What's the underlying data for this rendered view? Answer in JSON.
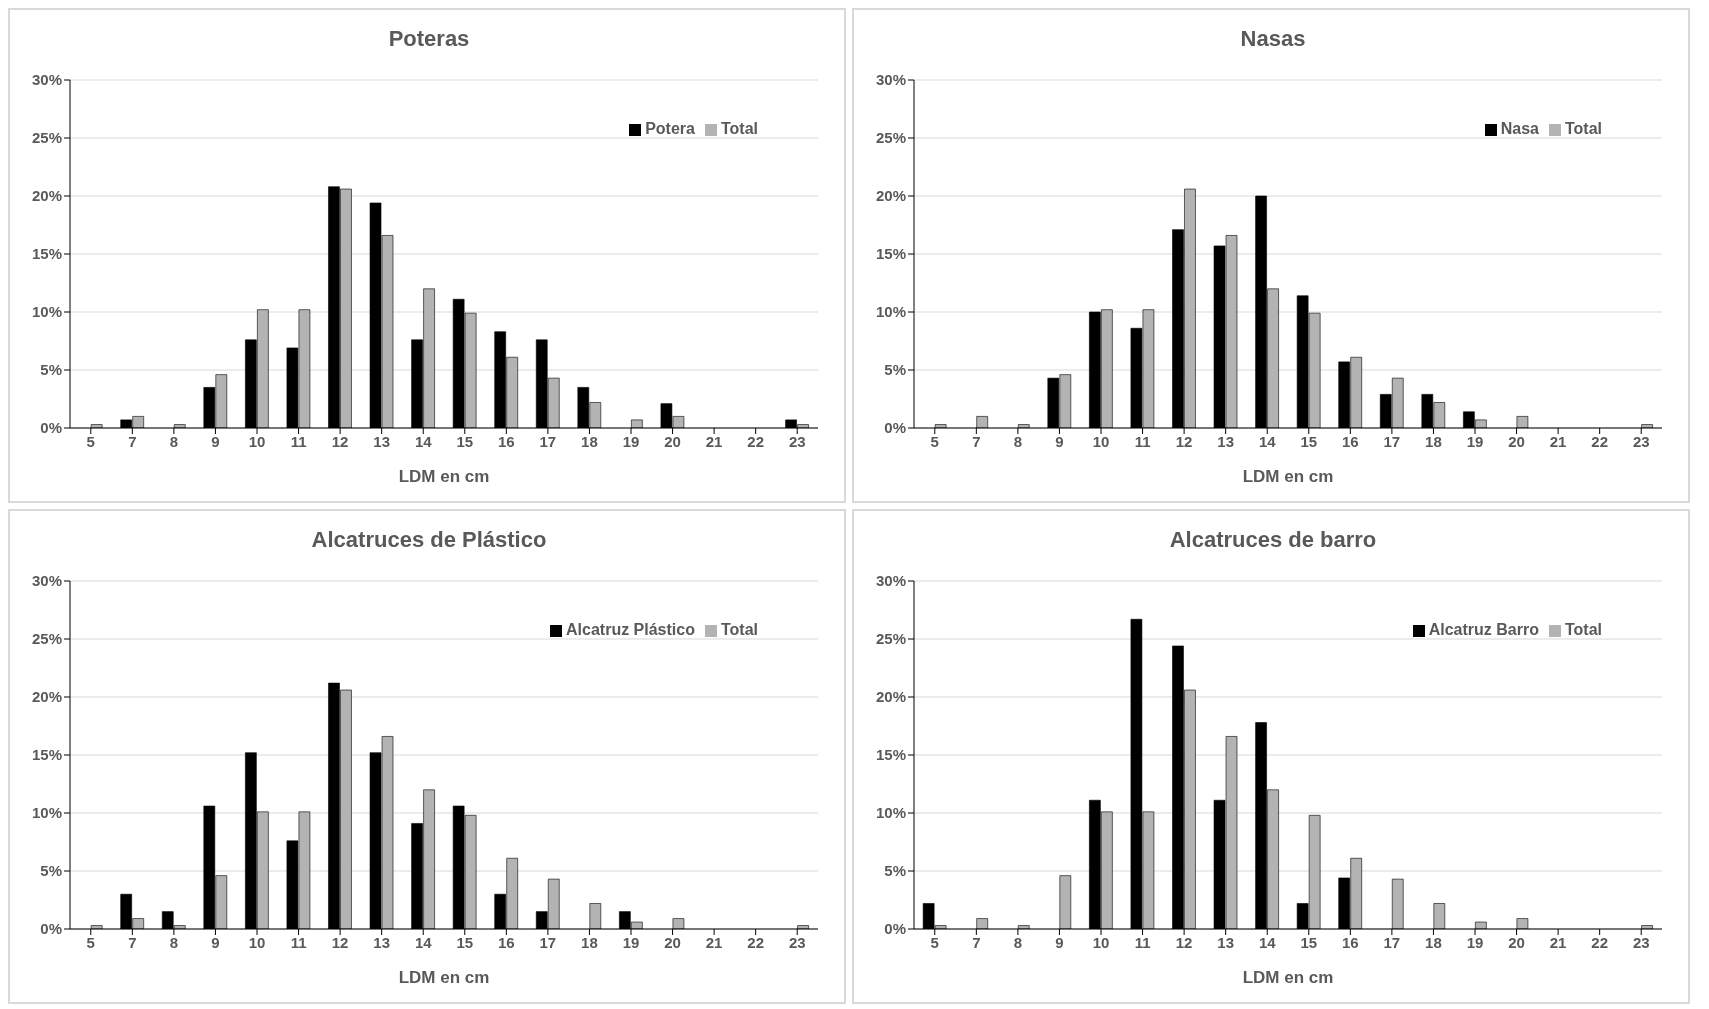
{
  "chart_data": [
    {
      "type": "bar",
      "title": "Poteras",
      "xlabel": "LDM en cm",
      "categories": [
        "5",
        "7",
        "8",
        "9",
        "10",
        "11",
        "12",
        "13",
        "14",
        "15",
        "16",
        "17",
        "18",
        "19",
        "20",
        "21",
        "22",
        "23"
      ],
      "series": [
        {
          "name": "Potera",
          "color": "#000000",
          "values": [
            0,
            0.7,
            0,
            3.5,
            7.6,
            6.9,
            20.8,
            19.4,
            7.6,
            11.1,
            8.3,
            7.6,
            3.5,
            0,
            2.1,
            0,
            0,
            0.7
          ]
        },
        {
          "name": "Total",
          "color": "#b3b3b3",
          "values": [
            0.3,
            1.0,
            0.3,
            4.6,
            10.2,
            10.2,
            20.6,
            16.6,
            12.0,
            9.9,
            6.1,
            4.3,
            2.2,
            0.7,
            1.0,
            0,
            0,
            0.3
          ]
        }
      ],
      "ylim": [
        0,
        30
      ],
      "yticks": [
        {
          "value": 0,
          "label": "0%"
        },
        {
          "value": 5,
          "label": "5%"
        },
        {
          "value": 10,
          "label": "10%"
        },
        {
          "value": 15,
          "label": "15%"
        },
        {
          "value": 20,
          "label": "20%"
        },
        {
          "value": 25,
          "label": "25%"
        },
        {
          "value": 30,
          "label": "30%"
        }
      ],
      "grid": "y",
      "legend": "top right"
    },
    {
      "type": "bar",
      "title": "Nasas",
      "xlabel": "LDM en cm",
      "categories": [
        "5",
        "7",
        "8",
        "9",
        "10",
        "11",
        "12",
        "13",
        "14",
        "15",
        "16",
        "17",
        "18",
        "19",
        "20",
        "21",
        "22",
        "23"
      ],
      "series": [
        {
          "name": "Nasa",
          "color": "#000000",
          "values": [
            0,
            0,
            0,
            4.3,
            10.0,
            8.6,
            17.1,
            15.7,
            20.0,
            11.4,
            5.7,
            2.9,
            2.9,
            1.4,
            0,
            0,
            0,
            0
          ]
        },
        {
          "name": "Total",
          "color": "#b3b3b3",
          "values": [
            0.3,
            1.0,
            0.3,
            4.6,
            10.2,
            10.2,
            20.6,
            16.6,
            12.0,
            9.9,
            6.1,
            4.3,
            2.2,
            0.7,
            1.0,
            0,
            0,
            0.3
          ]
        }
      ],
      "ylim": [
        0,
        30
      ],
      "yticks": [
        {
          "value": 0,
          "label": "0%"
        },
        {
          "value": 5,
          "label": "5%"
        },
        {
          "value": 10,
          "label": "10%"
        },
        {
          "value": 15,
          "label": "15%"
        },
        {
          "value": 20,
          "label": "20%"
        },
        {
          "value": 25,
          "label": "25%"
        },
        {
          "value": 30,
          "label": "30%"
        }
      ],
      "grid": "y",
      "legend": "top right"
    },
    {
      "type": "bar",
      "title": "Alcatruces de Plástico",
      "xlabel": "LDM en cm",
      "categories": [
        "5",
        "7",
        "8",
        "9",
        "10",
        "11",
        "12",
        "13",
        "14",
        "15",
        "16",
        "17",
        "18",
        "19",
        "20",
        "21",
        "22",
        "23"
      ],
      "series": [
        {
          "name": "Alcatruz Plástico",
          "color": "#000000",
          "values": [
            0,
            3.0,
            1.5,
            10.6,
            15.2,
            7.6,
            21.2,
            15.2,
            9.1,
            10.6,
            3.0,
            1.5,
            0,
            1.5,
            0,
            0,
            0,
            0
          ]
        },
        {
          "name": "Total",
          "color": "#b3b3b3",
          "values": [
            0.3,
            0.9,
            0.3,
            4.6,
            10.1,
            10.1,
            20.6,
            16.6,
            12.0,
            9.8,
            6.1,
            4.3,
            2.2,
            0.6,
            0.9,
            0,
            0,
            0.3
          ]
        }
      ],
      "ylim": [
        0,
        30
      ],
      "yticks": [
        {
          "value": 0,
          "label": "0%"
        },
        {
          "value": 5,
          "label": "5%"
        },
        {
          "value": 10,
          "label": "10%"
        },
        {
          "value": 15,
          "label": "15%"
        },
        {
          "value": 20,
          "label": "20%"
        },
        {
          "value": 25,
          "label": "25%"
        },
        {
          "value": 30,
          "label": "30%"
        }
      ],
      "grid": "y",
      "legend": "top right"
    },
    {
      "type": "bar",
      "title": "Alcatruces de barro",
      "xlabel": "LDM en cm",
      "categories": [
        "5",
        "7",
        "8",
        "9",
        "10",
        "11",
        "12",
        "13",
        "14",
        "15",
        "16",
        "17",
        "18",
        "19",
        "20",
        "21",
        "22",
        "23"
      ],
      "series": [
        {
          "name": "Alcatruz Barro",
          "color": "#000000",
          "values": [
            2.2,
            0,
            0,
            0,
            11.1,
            26.7,
            24.4,
            11.1,
            17.8,
            2.2,
            4.4,
            0,
            0,
            0,
            0,
            0,
            0,
            0
          ]
        },
        {
          "name": "Total",
          "color": "#b3b3b3",
          "values": [
            0.3,
            0.9,
            0.3,
            4.6,
            10.1,
            10.1,
            20.6,
            16.6,
            12.0,
            9.8,
            6.1,
            4.3,
            2.2,
            0.6,
            0.9,
            0,
            0,
            0.3
          ]
        }
      ],
      "ylim": [
        0,
        30
      ],
      "yticks": [
        {
          "value": 0,
          "label": "0%"
        },
        {
          "value": 5,
          "label": "5%"
        },
        {
          "value": 10,
          "label": "10%"
        },
        {
          "value": 15,
          "label": "15%"
        },
        {
          "value": 20,
          "label": "20%"
        },
        {
          "value": 25,
          "label": "25%"
        },
        {
          "value": 30,
          "label": "30%"
        }
      ],
      "grid": "y",
      "legend": "top right"
    }
  ]
}
